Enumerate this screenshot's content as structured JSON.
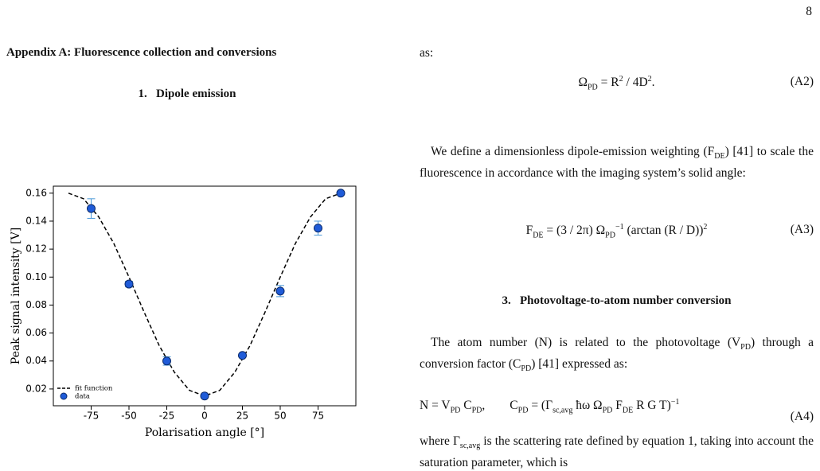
{
  "page_number": "8",
  "left": {
    "heading": "Appendix A: Fluorescence collection and conversions",
    "subheading": "1.   Dipole emission"
  },
  "chart_data": {
    "type": "scatter",
    "xlabel": "Polarisation angle [°]",
    "ylabel": "Peak signal intensity [V]",
    "xlim": [
      -100,
      100
    ],
    "ylim": [
      0.008,
      0.165
    ],
    "xticks": [
      -75,
      -50,
      -25,
      0,
      25,
      50,
      75
    ],
    "yticks": [
      0.02,
      0.04,
      0.06,
      0.08,
      {
        "value": 0.1,
        "label": "0.10"
      },
      0.12,
      0.14,
      0.16
    ],
    "grid": false,
    "legend": "lower left",
    "series": [
      {
        "name": "fit function",
        "type": "line",
        "color": "#000000",
        "dashed": true,
        "x": [
          -90,
          -80,
          -70,
          -60,
          -50,
          -40,
          -30,
          -20,
          -10,
          0,
          10,
          20,
          30,
          40,
          50,
          60,
          70,
          80,
          90
        ],
        "values": [
          0.16,
          0.156,
          0.143,
          0.124,
          0.1,
          0.075,
          0.051,
          0.032,
          0.019,
          0.015,
          0.019,
          0.032,
          0.051,
          0.075,
          0.1,
          0.124,
          0.143,
          0.156,
          0.16
        ]
      },
      {
        "name": "data",
        "type": "errorbar",
        "color": "#1f5bd8",
        "ecolor": "#4a98d8",
        "x": [
          -75,
          -50,
          -25,
          0,
          25,
          50,
          75,
          90
        ],
        "values": [
          0.149,
          0.095,
          0.04,
          0.015,
          0.044,
          0.09,
          0.135,
          0.16
        ],
        "errors": [
          0.007,
          0.002,
          0.003,
          0.001,
          0.001,
          0.004,
          0.005,
          0.001
        ]
      }
    ]
  },
  "right": {
    "as1": "as:",
    "eq_a2": [
      "Ω",
      {
        "sub": "PD"
      },
      " = R",
      {
        "sup": "2"
      },
      " / 4D",
      {
        "sup": "2"
      },
      "."
    ],
    "eq_a2_label": "(A2)",
    "para1": [
      "We define a dimensionless dipole-emission weighting (F",
      {
        "sub": "DE"
      },
      ") [41] to scale the fluorescence in accordance with the imaging system’s solid angle:"
    ],
    "eq_a3": [
      "F",
      {
        "sub": "DE"
      },
      " = ",
      "(3 / 2π) Ω",
      {
        "sub": "PD"
      },
      {
        "sup": "−1"
      },
      " (arctan (R / D))",
      {
        "sup": "2"
      }
    ],
    "eq_a3_label": "(A3)",
    "heading3": "3.   Photovoltage-to-atom number conversion",
    "para2": [
      "The atom number (N) is related to the photovoltage (V",
      {
        "sub": "PD"
      },
      ") through a conversion factor (C",
      {
        "sub": "PD"
      },
      ") [41] expressed as:"
    ],
    "eq_a4": [
      "N = V",
      {
        "sub": "PD"
      },
      " C",
      {
        "sub": "PD"
      },
      ",        C",
      {
        "sub": "PD"
      },
      " = (Γ",
      {
        "sub": "sc,avg"
      },
      " ħω Ω",
      {
        "sub": "PD"
      },
      " F",
      {
        "sub": "DE"
      },
      " R G T)",
      {
        "sup": "−1"
      }
    ],
    "eq_a4_label": "(A4)",
    "para3": [
      "where Γ",
      {
        "sub": "sc,avg"
      },
      " is the scattering rate defined by equation 1, taking into account the saturation parameter, which is"
    ]
  }
}
